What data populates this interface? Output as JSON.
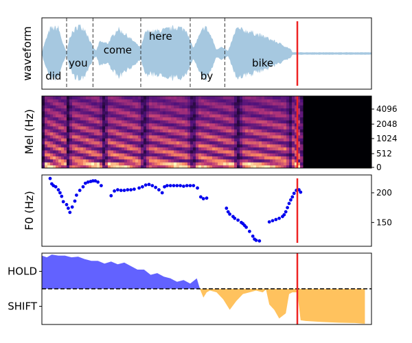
{
  "chart_data": [
    {
      "type": "area",
      "ylabel": "waveform",
      "x_range": [
        0,
        10
      ],
      "words": [
        {
          "text": "did",
          "x": 0.35,
          "level": "low"
        },
        {
          "text": "you",
          "x": 1.1,
          "level": "mid"
        },
        {
          "text": "come",
          "x": 2.3,
          "level": "high"
        },
        {
          "text": "here",
          "x": 3.6,
          "level": "top"
        },
        {
          "text": "by",
          "x": 5.0,
          "level": "low"
        },
        {
          "text": "bike",
          "x": 6.7,
          "level": "mid"
        }
      ],
      "word_boundaries": [
        0.75,
        1.55,
        3.0,
        4.5,
        5.55
      ],
      "envelope": [
        [
          0,
          0.03
        ],
        [
          0.05,
          0.25
        ],
        [
          0.25,
          0.85
        ],
        [
          0.5,
          0.88
        ],
        [
          0.65,
          0.3
        ],
        [
          0.75,
          0.05
        ],
        [
          0.85,
          0.6
        ],
        [
          1.1,
          0.95
        ],
        [
          1.3,
          0.85
        ],
        [
          1.55,
          0.2
        ],
        [
          1.65,
          0.1
        ],
        [
          1.75,
          0.4
        ],
        [
          2.0,
          0.35
        ],
        [
          2.3,
          0.85
        ],
        [
          2.6,
          0.6
        ],
        [
          2.9,
          0.3
        ],
        [
          3.0,
          0.2
        ],
        [
          3.15,
          0.75
        ],
        [
          3.4,
          0.75
        ],
        [
          3.8,
          0.82
        ],
        [
          4.1,
          0.9
        ],
        [
          4.4,
          0.8
        ],
        [
          4.5,
          0.4
        ],
        [
          4.6,
          0.2
        ],
        [
          4.75,
          0.55
        ],
        [
          4.95,
          0.95
        ],
        [
          5.15,
          0.55
        ],
        [
          5.3,
          0.12
        ],
        [
          5.45,
          0.25
        ],
        [
          5.65,
          0.08
        ],
        [
          5.9,
          0.85
        ],
        [
          6.3,
          0.75
        ],
        [
          6.8,
          0.55
        ],
        [
          7.2,
          0.35
        ],
        [
          7.55,
          0.15
        ],
        [
          7.6,
          0.04
        ],
        [
          10,
          0.04
        ]
      ],
      "cursor_x": 7.75,
      "colors": {
        "wave": "#a6c8e0",
        "boundary": "#333333",
        "cursor": "#ee2222"
      }
    },
    {
      "type": "heatmap",
      "ylabel": "Mel (Hz)",
      "y_tick_labels": [
        "0",
        "512",
        "1024",
        "2048",
        "4096"
      ],
      "x_range": [
        0,
        10
      ],
      "voiced_segments": [
        [
          0.0,
          0.75
        ],
        [
          0.75,
          1.85
        ],
        [
          1.85,
          3.05
        ],
        [
          3.05,
          4.55
        ],
        [
          4.55,
          5.9
        ],
        [
          5.9,
          7.55
        ],
        [
          7.55,
          7.85
        ]
      ],
      "speech_end": 7.85,
      "cursor_x": 7.75,
      "colormap": "magma"
    },
    {
      "type": "scatter",
      "ylabel": "F0 (Hz)",
      "y_tick_labels": [
        "150",
        "200"
      ],
      "ylim": [
        110,
        230
      ],
      "x_range": [
        0,
        10
      ],
      "points": [
        [
          0.25,
          224
        ],
        [
          0.3,
          215
        ],
        [
          0.35,
          212
        ],
        [
          0.42,
          210
        ],
        [
          0.5,
          205
        ],
        [
          0.55,
          200
        ],
        [
          0.6,
          194
        ],
        [
          0.65,
          185
        ],
        [
          0.75,
          180
        ],
        [
          0.8,
          174
        ],
        [
          0.85,
          167
        ],
        [
          0.92,
          176
        ],
        [
          1.0,
          186
        ],
        [
          1.05,
          196
        ],
        [
          1.15,
          204
        ],
        [
          1.25,
          210
        ],
        [
          1.32,
          216
        ],
        [
          1.4,
          218
        ],
        [
          1.48,
          219
        ],
        [
          1.55,
          220
        ],
        [
          1.62,
          220
        ],
        [
          1.7,
          218
        ],
        [
          1.8,
          212
        ],
        [
          2.1,
          195
        ],
        [
          2.2,
          203
        ],
        [
          2.3,
          205
        ],
        [
          2.4,
          204
        ],
        [
          2.5,
          204
        ],
        [
          2.6,
          205
        ],
        [
          2.7,
          205
        ],
        [
          2.8,
          206
        ],
        [
          2.95,
          208
        ],
        [
          3.05,
          210
        ],
        [
          3.15,
          213
        ],
        [
          3.25,
          214
        ],
        [
          3.35,
          212
        ],
        [
          3.45,
          209
        ],
        [
          3.55,
          205
        ],
        [
          3.65,
          200
        ],
        [
          3.72,
          210
        ],
        [
          3.8,
          212
        ],
        [
          3.9,
          212
        ],
        [
          4.0,
          212
        ],
        [
          4.1,
          212
        ],
        [
          4.2,
          212
        ],
        [
          4.3,
          211
        ],
        [
          4.4,
          212
        ],
        [
          4.5,
          212
        ],
        [
          4.6,
          212
        ],
        [
          4.72,
          208
        ],
        [
          4.82,
          193
        ],
        [
          4.9,
          190
        ],
        [
          5.0,
          191
        ],
        [
          5.6,
          174
        ],
        [
          5.65,
          168
        ],
        [
          5.7,
          164
        ],
        [
          5.8,
          160
        ],
        [
          5.85,
          157
        ],
        [
          5.95,
          154
        ],
        [
          6.05,
          150
        ],
        [
          6.1,
          148
        ],
        [
          6.15,
          145
        ],
        [
          6.2,
          142
        ],
        [
          6.3,
          135
        ],
        [
          6.4,
          127
        ],
        [
          6.45,
          122
        ],
        [
          6.5,
          120
        ],
        [
          6.6,
          119
        ],
        [
          6.9,
          151
        ],
        [
          7.0,
          153
        ],
        [
          7.1,
          155
        ],
        [
          7.2,
          157
        ],
        [
          7.3,
          160
        ],
        [
          7.35,
          163
        ],
        [
          7.4,
          168
        ],
        [
          7.45,
          175
        ],
        [
          7.5,
          182
        ],
        [
          7.55,
          188
        ],
        [
          7.6,
          193
        ],
        [
          7.65,
          199
        ],
        [
          7.72,
          204
        ],
        [
          7.8,
          205
        ],
        [
          7.85,
          201
        ]
      ],
      "cursor_x": 7.75,
      "colors": {
        "points": "#0000ee",
        "cursor": "#ee2222"
      }
    },
    {
      "type": "area",
      "y_tick_labels": [
        "HOLD",
        "SHIFT"
      ],
      "ylim": [
        -1,
        1
      ],
      "x_range": [
        0,
        10
      ],
      "curve": [
        [
          0,
          0.95
        ],
        [
          0.15,
          0.9
        ],
        [
          0.3,
          0.98
        ],
        [
          0.5,
          0.95
        ],
        [
          0.7,
          0.95
        ],
        [
          0.9,
          0.9
        ],
        [
          1.1,
          0.92
        ],
        [
          1.3,
          0.85
        ],
        [
          1.5,
          0.8
        ],
        [
          1.7,
          0.8
        ],
        [
          1.9,
          0.72
        ],
        [
          2.1,
          0.78
        ],
        [
          2.3,
          0.7
        ],
        [
          2.5,
          0.75
        ],
        [
          2.7,
          0.65
        ],
        [
          2.9,
          0.55
        ],
        [
          3.1,
          0.55
        ],
        [
          3.3,
          0.4
        ],
        [
          3.5,
          0.45
        ],
        [
          3.7,
          0.35
        ],
        [
          3.9,
          0.3
        ],
        [
          4.1,
          0.2
        ],
        [
          4.3,
          0.25
        ],
        [
          4.5,
          0.15
        ],
        [
          4.7,
          0.3
        ],
        [
          4.78,
          0.05
        ],
        [
          4.8,
          -0.02
        ],
        [
          4.9,
          -0.25
        ],
        [
          5.0,
          -0.1
        ],
        [
          5.1,
          -0.05
        ],
        [
          5.3,
          -0.1
        ],
        [
          5.5,
          -0.3
        ],
        [
          5.7,
          -0.6
        ],
        [
          5.9,
          -0.35
        ],
        [
          6.1,
          -0.15
        ],
        [
          6.3,
          -0.1
        ],
        [
          6.5,
          -0.05
        ],
        [
          6.7,
          -0.1
        ],
        [
          6.8,
          -0.02
        ],
        [
          6.9,
          -0.45
        ],
        [
          7.05,
          -0.6
        ],
        [
          7.2,
          -0.85
        ],
        [
          7.4,
          -0.7
        ],
        [
          7.5,
          -0.15
        ],
        [
          7.6,
          -0.1
        ],
        [
          7.75,
          -0.1
        ],
        [
          7.85,
          -0.9
        ],
        [
          8.0,
          -0.92
        ],
        [
          8.5,
          -0.95
        ],
        [
          9.0,
          -0.97
        ],
        [
          9.5,
          -0.98
        ],
        [
          9.8,
          -1.0
        ]
      ],
      "cursor_x": 7.75,
      "colors": {
        "hold": "#6262ff",
        "shift": "#ffc25e",
        "zero": "#000000",
        "cursor": "#ee2222"
      }
    }
  ]
}
